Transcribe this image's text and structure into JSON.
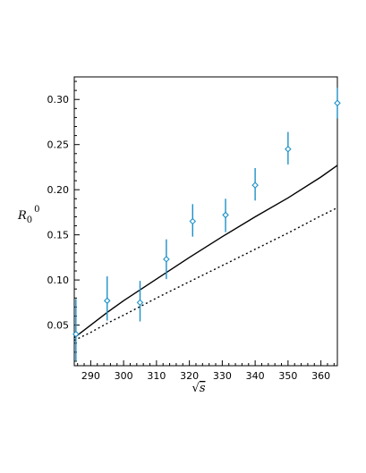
{
  "chart_data": {
    "type": "scatter",
    "xlabel_radical": "√",
    "xlabel_var": "s",
    "ylabel_main": "R",
    "ylabel_sub": "0",
    "ylabel_sup": "0",
    "xlim": [
      285,
      365
    ],
    "ylim": [
      0.005,
      0.325
    ],
    "xticks": [
      290,
      300,
      310,
      320,
      330,
      340,
      350,
      360
    ],
    "yticks": [
      0.05,
      0.1,
      0.15,
      0.2,
      0.25,
      0.3
    ],
    "ytick_labels": [
      "0.05",
      "0.10",
      "0.15",
      "0.20",
      "0.25",
      "0.30"
    ],
    "grid": false,
    "points": [
      {
        "x": 285.5,
        "y": 0.04,
        "err_low": 0.01,
        "err_high": 0.079
      },
      {
        "x": 295.0,
        "y": 0.077,
        "err_low": 0.055,
        "err_high": 0.104
      },
      {
        "x": 305.0,
        "y": 0.075,
        "err_low": 0.054,
        "err_high": 0.099
      },
      {
        "x": 313.0,
        "y": 0.123,
        "err_low": 0.101,
        "err_high": 0.145
      },
      {
        "x": 321.0,
        "y": 0.165,
        "err_low": 0.148,
        "err_high": 0.184
      },
      {
        "x": 331.0,
        "y": 0.172,
        "err_low": 0.153,
        "err_high": 0.19
      },
      {
        "x": 340.0,
        "y": 0.205,
        "err_low": 0.188,
        "err_high": 0.224
      },
      {
        "x": 350.0,
        "y": 0.245,
        "err_low": 0.228,
        "err_high": 0.264
      },
      {
        "x": 365.0,
        "y": 0.296,
        "err_low": 0.279,
        "err_high": 0.313
      }
    ],
    "series": [
      {
        "style": "solid",
        "x": [
          285,
          290,
          295,
          300,
          310,
          320,
          330,
          340,
          350,
          360,
          365
        ],
        "y": [
          0.036,
          0.05,
          0.064,
          0.077,
          0.101,
          0.125,
          0.148,
          0.17,
          0.191,
          0.214,
          0.227
        ]
      },
      {
        "style": "dotted",
        "x": [
          285,
          290,
          295,
          300,
          310,
          320,
          330,
          340,
          350,
          360,
          365
        ],
        "y": [
          0.033,
          0.042,
          0.052,
          0.061,
          0.08,
          0.098,
          0.116,
          0.134,
          0.152,
          0.171,
          0.18
        ]
      }
    ],
    "colors": {
      "points": "#1e90c8",
      "solid": "#000000",
      "dotted": "#000000"
    }
  }
}
